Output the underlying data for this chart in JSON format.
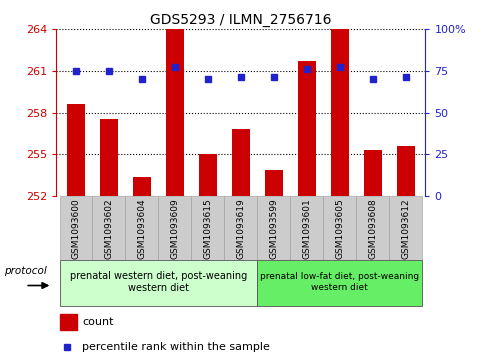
{
  "title": "GDS5293 / ILMN_2756716",
  "samples": [
    "GSM1093600",
    "GSM1093602",
    "GSM1093604",
    "GSM1093609",
    "GSM1093615",
    "GSM1093619",
    "GSM1093599",
    "GSM1093601",
    "GSM1093605",
    "GSM1093608",
    "GSM1093612"
  ],
  "counts": [
    258.6,
    257.5,
    253.4,
    264.0,
    255.0,
    256.8,
    253.9,
    261.7,
    264.0,
    255.3,
    255.6
  ],
  "percentile_ranks": [
    75,
    75,
    70,
    77,
    70,
    71,
    71,
    76,
    77,
    70,
    71
  ],
  "ylim_left": [
    252,
    264
  ],
  "ylim_right": [
    0,
    100
  ],
  "yticks_left": [
    252,
    255,
    258,
    261,
    264
  ],
  "yticks_right": [
    0,
    25,
    50,
    75,
    100
  ],
  "bar_color": "#cc0000",
  "dot_color": "#2222cc",
  "group1_label": "prenatal western diet, post-weaning\nwestern diet",
  "group2_label": "prenatal low-fat diet, post-weaning\nwestern diet",
  "group1_indices": [
    0,
    1,
    2,
    3,
    4,
    5
  ],
  "group2_indices": [
    6,
    7,
    8,
    9,
    10
  ],
  "group1_bg": "#ccffcc",
  "group2_bg": "#66ee66",
  "sample_bg": "#cccccc",
  "legend_count_label": "count",
  "legend_pct_label": "percentile rank within the sample",
  "protocol_label": "protocol",
  "axis_left_color": "#cc0000",
  "axis_right_color": "#2222cc",
  "bar_width": 0.55
}
